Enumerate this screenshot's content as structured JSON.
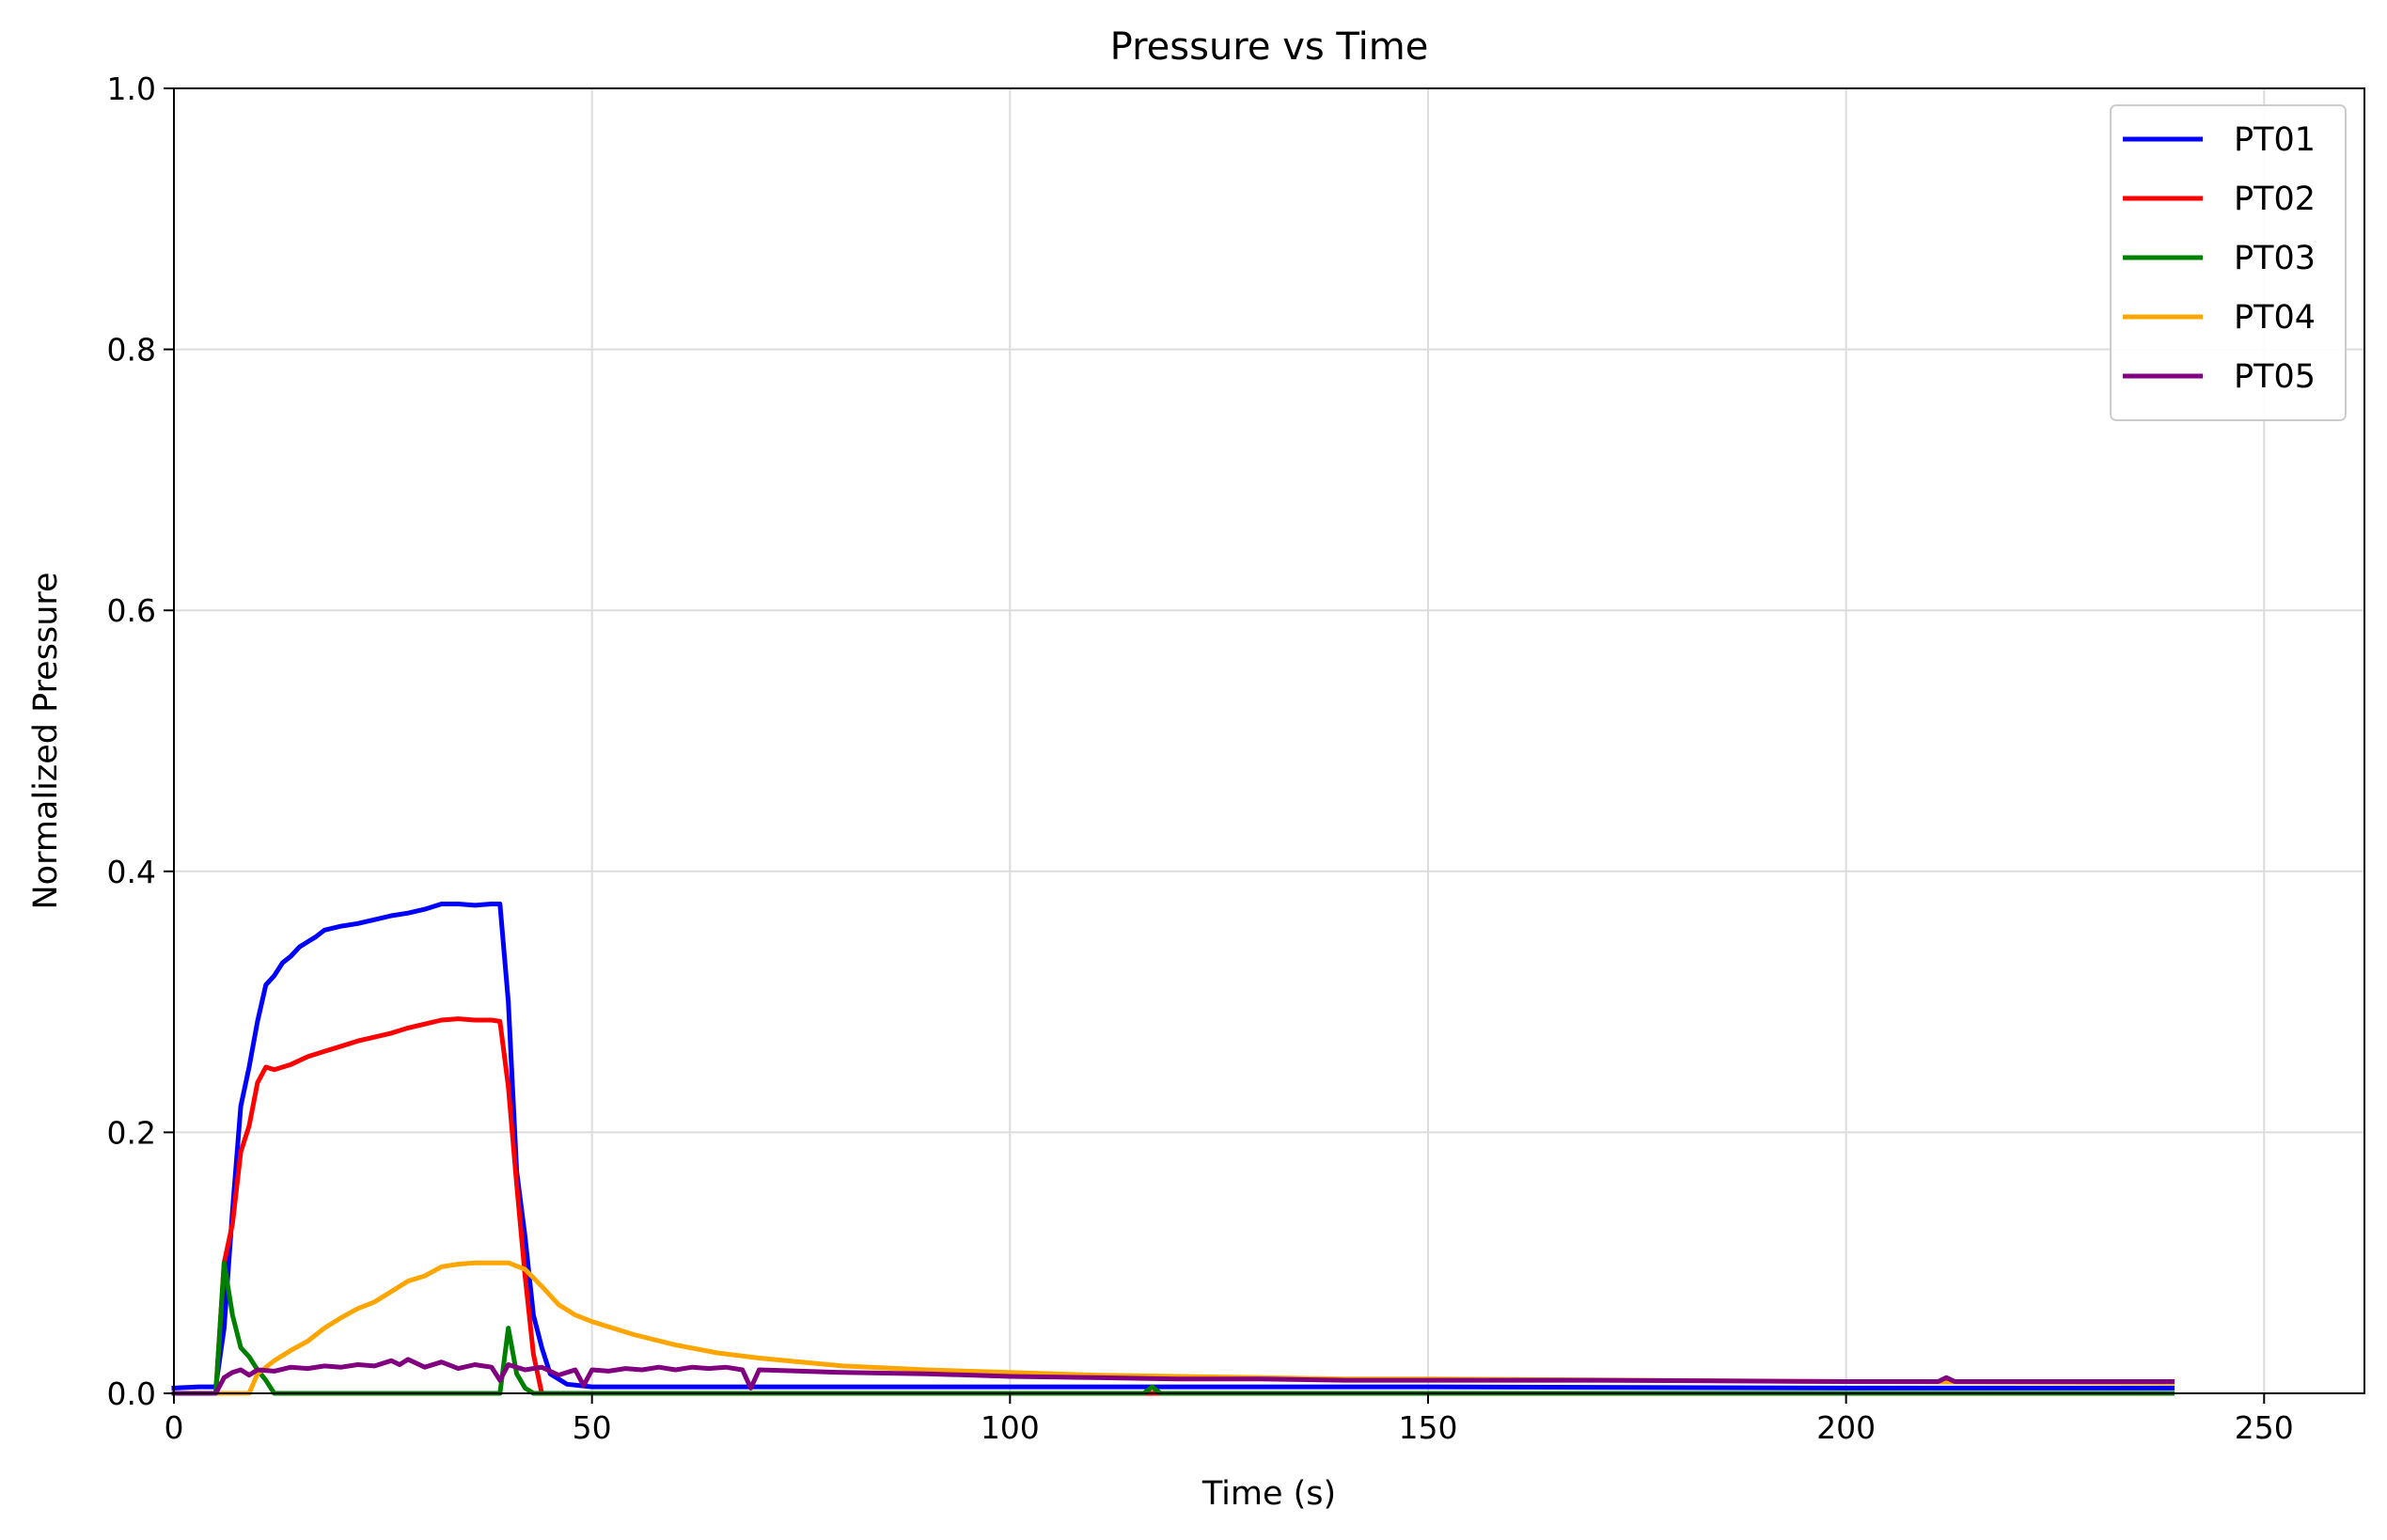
{
  "chart_data": {
    "type": "line",
    "title": "Pressure vs Time",
    "xlabel": "Time (s)",
    "ylabel": "Normalized Pressure",
    "xlim": [
      0,
      262
    ],
    "ylim": [
      0,
      1.0
    ],
    "x_ticks": [
      0,
      50,
      100,
      150,
      200,
      250
    ],
    "x_tick_labels": [
      "0",
      "50",
      "100",
      "150",
      "200",
      "250"
    ],
    "y_ticks": [
      0,
      0.2,
      0.4,
      0.6,
      0.8,
      1.0
    ],
    "y_tick_labels": [
      "0.0",
      "0.2",
      "0.4",
      "0.6",
      "0.8",
      "1.0"
    ],
    "grid": true,
    "legend_position": "top-right",
    "series": [
      {
        "name": "PT01",
        "color": "#0000ff",
        "points": [
          [
            0,
            0.004
          ],
          [
            3,
            0.005
          ],
          [
            5,
            0.005
          ],
          [
            6,
            0.05
          ],
          [
            7,
            0.14
          ],
          [
            8,
            0.22
          ],
          [
            9,
            0.25
          ],
          [
            10,
            0.285
          ],
          [
            11,
            0.313
          ],
          [
            12,
            0.32
          ],
          [
            13,
            0.33
          ],
          [
            14,
            0.335
          ],
          [
            15,
            0.342
          ],
          [
            17,
            0.35
          ],
          [
            18,
            0.355
          ],
          [
            20,
            0.358
          ],
          [
            22,
            0.36
          ],
          [
            24,
            0.363
          ],
          [
            26,
            0.366
          ],
          [
            28,
            0.368
          ],
          [
            30,
            0.371
          ],
          [
            32,
            0.375
          ],
          [
            34,
            0.375
          ],
          [
            36,
            0.374
          ],
          [
            38,
            0.375
          ],
          [
            39,
            0.375
          ],
          [
            40,
            0.3
          ],
          [
            41,
            0.17
          ],
          [
            42,
            0.12
          ],
          [
            43,
            0.06
          ],
          [
            44,
            0.035
          ],
          [
            45,
            0.015
          ],
          [
            47,
            0.007
          ],
          [
            50,
            0.005
          ],
          [
            100,
            0.005
          ],
          [
            150,
            0.005
          ],
          [
            200,
            0.004
          ],
          [
            239,
            0.004
          ]
        ]
      },
      {
        "name": "PT02",
        "color": "#ff0000",
        "points": [
          [
            0,
            0.0
          ],
          [
            5,
            0.0
          ],
          [
            6,
            0.1
          ],
          [
            7,
            0.13
          ],
          [
            8,
            0.185
          ],
          [
            9,
            0.205
          ],
          [
            10,
            0.238
          ],
          [
            11,
            0.25
          ],
          [
            12,
            0.248
          ],
          [
            13,
            0.25
          ],
          [
            14,
            0.252
          ],
          [
            16,
            0.258
          ],
          [
            18,
            0.262
          ],
          [
            20,
            0.266
          ],
          [
            22,
            0.27
          ],
          [
            24,
            0.273
          ],
          [
            26,
            0.276
          ],
          [
            28,
            0.28
          ],
          [
            30,
            0.283
          ],
          [
            32,
            0.286
          ],
          [
            34,
            0.287
          ],
          [
            36,
            0.286
          ],
          [
            38,
            0.286
          ],
          [
            39,
            0.285
          ],
          [
            40,
            0.235
          ],
          [
            41,
            0.16
          ],
          [
            42,
            0.09
          ],
          [
            43,
            0.03
          ],
          [
            44,
            0.0
          ],
          [
            239,
            0.0
          ]
        ]
      },
      {
        "name": "PT03",
        "color": "#008000",
        "points": [
          [
            0,
            0.0
          ],
          [
            5,
            0.0
          ],
          [
            6,
            0.1
          ],
          [
            7,
            0.06
          ],
          [
            8,
            0.035
          ],
          [
            9,
            0.028
          ],
          [
            10,
            0.018
          ],
          [
            11,
            0.01
          ],
          [
            12,
            0.0
          ],
          [
            39,
            0.0
          ],
          [
            40,
            0.05
          ],
          [
            41,
            0.015
          ],
          [
            42,
            0.004
          ],
          [
            43,
            0.0
          ],
          [
            116,
            0.0
          ],
          [
            117,
            0.005
          ],
          [
            118,
            0.0
          ],
          [
            239,
            0.0
          ]
        ]
      },
      {
        "name": "PT04",
        "color": "#ffa500",
        "points": [
          [
            0,
            0.0
          ],
          [
            9,
            0.0
          ],
          [
            10,
            0.015
          ],
          [
            12,
            0.025
          ],
          [
            14,
            0.033
          ],
          [
            16,
            0.04
          ],
          [
            18,
            0.05
          ],
          [
            20,
            0.058
          ],
          [
            22,
            0.065
          ],
          [
            24,
            0.07
          ],
          [
            26,
            0.078
          ],
          [
            28,
            0.086
          ],
          [
            30,
            0.09
          ],
          [
            32,
            0.097
          ],
          [
            34,
            0.099
          ],
          [
            36,
            0.1
          ],
          [
            38,
            0.1
          ],
          [
            40,
            0.1
          ],
          [
            42,
            0.095
          ],
          [
            44,
            0.082
          ],
          [
            46,
            0.068
          ],
          [
            48,
            0.06
          ],
          [
            50,
            0.055
          ],
          [
            55,
            0.045
          ],
          [
            60,
            0.037
          ],
          [
            65,
            0.031
          ],
          [
            70,
            0.027
          ],
          [
            75,
            0.024
          ],
          [
            80,
            0.021
          ],
          [
            90,
            0.018
          ],
          [
            100,
            0.016
          ],
          [
            110,
            0.014
          ],
          [
            120,
            0.013
          ],
          [
            130,
            0.012
          ],
          [
            140,
            0.011
          ],
          [
            150,
            0.011
          ],
          [
            200,
            0.009
          ],
          [
            239,
            0.008
          ]
        ]
      },
      {
        "name": "PT05",
        "color": "#800080",
        "points": [
          [
            0,
            0.0
          ],
          [
            5,
            0.0
          ],
          [
            6,
            0.012
          ],
          [
            7,
            0.016
          ],
          [
            8,
            0.018
          ],
          [
            9,
            0.014
          ],
          [
            10,
            0.018
          ],
          [
            12,
            0.017
          ],
          [
            14,
            0.02
          ],
          [
            16,
            0.019
          ],
          [
            18,
            0.021
          ],
          [
            20,
            0.02
          ],
          [
            22,
            0.022
          ],
          [
            24,
            0.021
          ],
          [
            26,
            0.025
          ],
          [
            27,
            0.022
          ],
          [
            28,
            0.026
          ],
          [
            30,
            0.02
          ],
          [
            32,
            0.024
          ],
          [
            34,
            0.019
          ],
          [
            36,
            0.022
          ],
          [
            38,
            0.02
          ],
          [
            39,
            0.01
          ],
          [
            40,
            0.022
          ],
          [
            42,
            0.018
          ],
          [
            44,
            0.02
          ],
          [
            46,
            0.014
          ],
          [
            48,
            0.018
          ],
          [
            49,
            0.006
          ],
          [
            50,
            0.018
          ],
          [
            52,
            0.017
          ],
          [
            54,
            0.019
          ],
          [
            56,
            0.018
          ],
          [
            58,
            0.02
          ],
          [
            60,
            0.018
          ],
          [
            62,
            0.02
          ],
          [
            64,
            0.019
          ],
          [
            66,
            0.02
          ],
          [
            68,
            0.018
          ],
          [
            69,
            0.004
          ],
          [
            70,
            0.018
          ],
          [
            75,
            0.017
          ],
          [
            80,
            0.016
          ],
          [
            90,
            0.015
          ],
          [
            100,
            0.013
          ],
          [
            110,
            0.012
          ],
          [
            120,
            0.011
          ],
          [
            130,
            0.011
          ],
          [
            140,
            0.01
          ],
          [
            150,
            0.01
          ],
          [
            170,
            0.01
          ],
          [
            200,
            0.009
          ],
          [
            211,
            0.009
          ],
          [
            212,
            0.012
          ],
          [
            213,
            0.009
          ],
          [
            239,
            0.009
          ]
        ]
      }
    ]
  }
}
